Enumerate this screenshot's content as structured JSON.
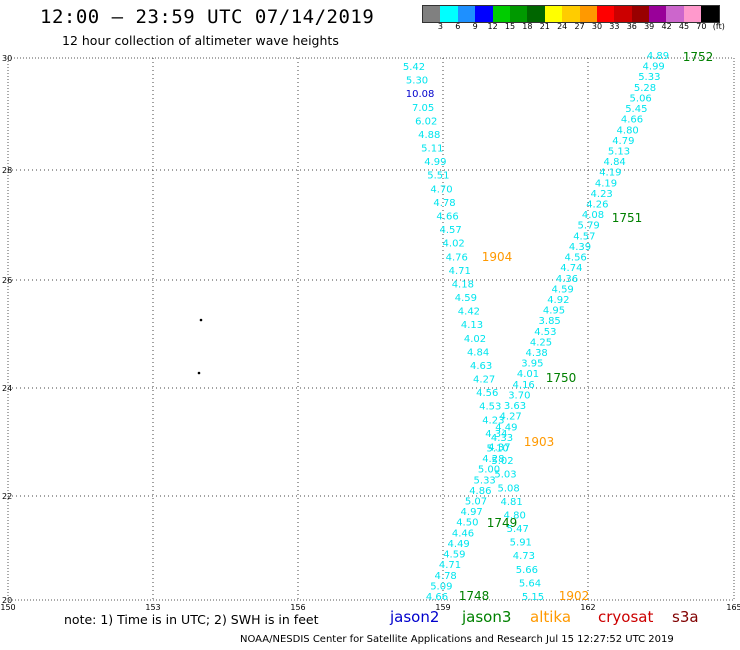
{
  "header": {
    "title": "12:00 – 23:59 UTC 07/14/2019",
    "subtitle": "12 hour collection of altimeter wave heights"
  },
  "color_scale": {
    "colors": [
      "#808080",
      "#00ffff",
      "#1e90ff",
      "#0000ff",
      "#00cc00",
      "#009900",
      "#006600",
      "#ffff00",
      "#ffcc00",
      "#ff9900",
      "#ff0000",
      "#cc0000",
      "#990000",
      "#990099",
      "#cc66cc",
      "#ff99cc",
      "#000000"
    ],
    "labels": [
      "3",
      "6",
      "9",
      "12",
      "15",
      "18",
      "21",
      "24",
      "27",
      "30",
      "33",
      "36",
      "39",
      "42",
      "45",
      "70",
      "(ft)"
    ]
  },
  "axes": {
    "x_ticks": [
      "150",
      "153",
      "156",
      "159",
      "162",
      "165"
    ],
    "y_ticks": [
      "30",
      "28",
      "26",
      "24",
      "22",
      "20"
    ]
  },
  "pass_labels": [
    {
      "text": "1752",
      "color": "#008000"
    },
    {
      "text": "1751",
      "color": "#008000"
    },
    {
      "text": "1904",
      "color": "#ff9900"
    },
    {
      "text": "1750",
      "color": "#008000"
    },
    {
      "text": "1903",
      "color": "#ff9900"
    },
    {
      "text": "1749",
      "color": "#008000"
    },
    {
      "text": "1748",
      "color": "#008000"
    },
    {
      "text": "1902",
      "color": "#ff9900"
    }
  ],
  "tracks": {
    "altika_values": [
      "5.42",
      "5.30",
      "10.08",
      "7.05",
      "6.02",
      "4.88",
      "5.11",
      "4.99",
      "5.51",
      "4.70",
      "4.78",
      "4.66",
      "4.57",
      "4.02",
      "4.76",
      "4.71",
      "4.18",
      "4.59",
      "4.42",
      "4.13",
      "4.02",
      "4.84",
      "4.63",
      "4.27",
      "4.56",
      "4.53",
      "4.23",
      "4.34",
      "4.37",
      "5.02",
      "5.03",
      "5.08",
      "4.81",
      "4.80",
      "5.47",
      "5.91",
      "4.73",
      "5.66",
      "5.64",
      "5.15"
    ],
    "jason3_values": [
      "4.89",
      "4.99",
      "5.33",
      "5.28",
      "5.06",
      "5.45",
      "4.66",
      "4.80",
      "4.79",
      "5.13",
      "4.84",
      "4.19",
      "4.19",
      "4.23",
      "4.26",
      "4.08",
      "5.79",
      "4.57",
      "4.39",
      "4.56",
      "4.74",
      "4.36",
      "4.59",
      "4.92",
      "4.95",
      "3.85",
      "4.53",
      "4.25",
      "4.38",
      "3.95",
      "4.01",
      "4.16",
      "3.70",
      "3.63",
      "4.27",
      "4.49",
      "4.33",
      "5.10",
      "4.28",
      "5.00",
      "5.33",
      "4.86",
      "5.07",
      "4.97",
      "4.50",
      "4.46",
      "4.49",
      "4.59",
      "4.71",
      "4.78",
      "5.09",
      "4.66"
    ]
  },
  "dots": [
    {
      "label": "dot-1"
    },
    {
      "label": "dot-2"
    }
  ],
  "footer": {
    "note": "note:  1) Time is in UTC;  2) SWH is in feet",
    "legend": [
      {
        "name": "jason2",
        "color": "#0000cc"
      },
      {
        "name": "jason3",
        "color": "#008000"
      },
      {
        "name": "altika",
        "color": "#ff9900"
      },
      {
        "name": "cryosat",
        "color": "#cc0000"
      },
      {
        "name": "s3a",
        "color": "#800000"
      }
    ],
    "credit": "NOAA/NESDIS Center for Satellite Applications and Research    Jul 15 12:27:52 UTC 2019"
  }
}
